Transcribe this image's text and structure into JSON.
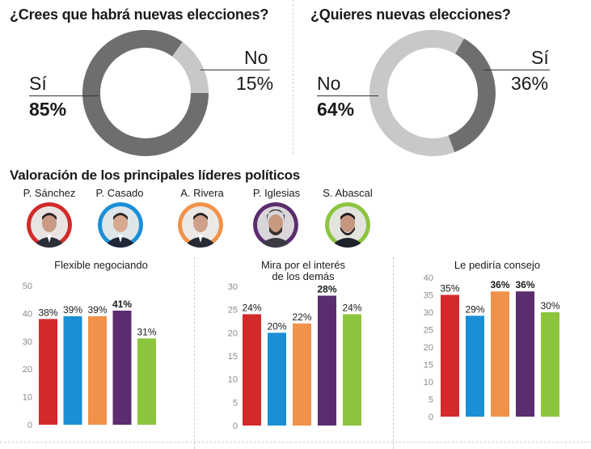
{
  "donuts": [
    {
      "title": "¿Crees que habrá nuevas elecciones?",
      "left_label": "Sí",
      "left_value": "85%",
      "right_label": "No",
      "right_value": "15%"
    },
    {
      "title": "¿Quieres nuevas elecciones?",
      "left_label": "No",
      "left_value": "64%",
      "right_label": "Sí",
      "right_value": "36%"
    }
  ],
  "section_title": "Valoración de los principales líderes políticos",
  "leaders": [
    {
      "name": "P. Sánchez",
      "color": "#d22a2a"
    },
    {
      "name": "P. Casado",
      "color": "#1a8fd6"
    },
    {
      "name": "A. Rivera",
      "color": "#f0924a"
    },
    {
      "name": "P. Iglesias",
      "color": "#5b2d6e"
    },
    {
      "name": "S. Abascal",
      "color": "#8cc43e"
    }
  ],
  "chart_data": [
    {
      "type": "pie",
      "title": "¿Crees que habrá nuevas elecciones?",
      "categories": [
        "Sí",
        "No"
      ],
      "values": [
        85,
        15
      ],
      "colors": [
        "#6e6e6e",
        "#c8c8c8"
      ]
    },
    {
      "type": "pie",
      "title": "¿Quieres nuevas elecciones?",
      "categories": [
        "No",
        "Sí"
      ],
      "values": [
        64,
        36
      ],
      "colors": [
        "#c8c8c8",
        "#6e6e6e"
      ]
    },
    {
      "type": "bar",
      "title": "Flexible negociando",
      "categories": [
        "P. Sánchez",
        "P. Casado",
        "A. Rivera",
        "P. Iglesias",
        "S. Abascal"
      ],
      "values": [
        38,
        39,
        39,
        41,
        31
      ],
      "labels": [
        "38%",
        "39%",
        "39%",
        "41%",
        "31%"
      ],
      "highlight_index": 3,
      "ylim": [
        0,
        50
      ],
      "yticks": [
        0,
        10,
        20,
        30,
        40,
        50
      ]
    },
    {
      "type": "bar",
      "title": "Mira por el interés de los demás",
      "title_lines": [
        "Mira por el interés",
        "de los demás"
      ],
      "categories": [
        "P. Sánchez",
        "P. Casado",
        "A. Rivera",
        "P. Iglesias",
        "S. Abascal"
      ],
      "values": [
        24,
        20,
        22,
        28,
        24
      ],
      "labels": [
        "24%",
        "20%",
        "22%",
        "28%",
        "24%"
      ],
      "highlight_index": 3,
      "ylim": [
        0,
        30
      ],
      "yticks": [
        0,
        5,
        10,
        15,
        20,
        25,
        30
      ]
    },
    {
      "type": "bar",
      "title": "Le pediría consejo",
      "categories": [
        "P. Sánchez",
        "P. Casado",
        "A. Rivera",
        "P. Iglesias",
        "S. Abascal"
      ],
      "values": [
        35,
        29,
        36,
        36,
        30
      ],
      "labels": [
        "35%",
        "29%",
        "36%",
        "36%",
        "30%"
      ],
      "highlight_indices": [
        2,
        3
      ],
      "ylim": [
        0,
        40
      ],
      "yticks": [
        0,
        5,
        10,
        15,
        20,
        25,
        30,
        35,
        40
      ]
    }
  ]
}
